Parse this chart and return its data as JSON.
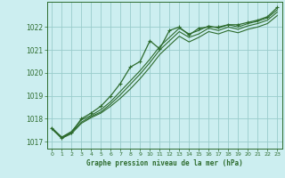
{
  "title": "Graphe pression niveau de la mer (hPa)",
  "bg_color": "#cceef0",
  "grid_color": "#99cccc",
  "line_color": "#2d6b2d",
  "xlim": [
    -0.5,
    23.5
  ],
  "ylim": [
    1016.7,
    1023.1
  ],
  "yticks": [
    1017,
    1018,
    1019,
    1020,
    1021,
    1022
  ],
  "xticks": [
    0,
    1,
    2,
    3,
    4,
    5,
    6,
    7,
    8,
    9,
    10,
    11,
    12,
    13,
    14,
    15,
    16,
    17,
    18,
    19,
    20,
    21,
    22,
    23
  ],
  "series": [
    {
      "x": [
        0,
        1,
        2,
        3,
        4,
        5,
        6,
        7,
        8,
        9,
        10,
        11,
        12,
        13,
        14,
        15,
        16,
        17,
        18,
        19,
        20,
        21,
        22,
        23
      ],
      "y": [
        1017.55,
        1017.15,
        1017.35,
        1017.8,
        1018.05,
        1018.25,
        1018.55,
        1018.9,
        1019.3,
        1019.75,
        1020.25,
        1020.8,
        1021.2,
        1021.6,
        1021.35,
        1021.55,
        1021.8,
        1021.7,
        1021.85,
        1021.75,
        1021.9,
        1022.0,
        1022.15,
        1022.5
      ],
      "has_markers": false,
      "lw": 0.8
    },
    {
      "x": [
        0,
        1,
        2,
        3,
        4,
        5,
        6,
        7,
        8,
        9,
        10,
        11,
        12,
        13,
        14,
        15,
        16,
        17,
        18,
        19,
        20,
        21,
        22,
        23
      ],
      "y": [
        1017.6,
        1017.2,
        1017.4,
        1017.85,
        1018.1,
        1018.3,
        1018.65,
        1019.05,
        1019.5,
        1019.95,
        1020.45,
        1021.0,
        1021.4,
        1021.8,
        1021.55,
        1021.7,
        1021.95,
        1021.85,
        1022.0,
        1021.9,
        1022.05,
        1022.15,
        1022.3,
        1022.65
      ],
      "has_markers": false,
      "lw": 0.8
    },
    {
      "x": [
        0,
        1,
        2,
        3,
        4,
        5,
        6,
        7,
        8,
        9,
        10,
        11,
        12,
        13,
        14,
        15,
        16,
        17,
        18,
        19,
        20,
        21,
        22,
        23
      ],
      "y": [
        1017.6,
        1017.2,
        1017.45,
        1017.95,
        1018.15,
        1018.4,
        1018.75,
        1019.2,
        1019.65,
        1020.1,
        1020.6,
        1021.15,
        1021.55,
        1021.95,
        1021.7,
        1021.85,
        1022.05,
        1021.95,
        1022.1,
        1022.0,
        1022.15,
        1022.25,
        1022.4,
        1022.75
      ],
      "has_markers": false,
      "lw": 0.8
    },
    {
      "x": [
        0,
        1,
        2,
        3,
        4,
        5,
        6,
        7,
        8,
        9,
        10,
        11,
        12,
        13,
        14,
        15,
        16,
        17,
        18,
        19,
        20,
        21,
        22,
        23
      ],
      "y": [
        1017.6,
        1017.15,
        1017.4,
        1018.0,
        1018.25,
        1018.55,
        1019.0,
        1019.55,
        1020.25,
        1020.5,
        1021.4,
        1021.05,
        1021.85,
        1022.0,
        1021.65,
        1021.95,
        1022.0,
        1022.0,
        1022.1,
        1022.1,
        1022.2,
        1022.3,
        1022.45,
        1022.85
      ],
      "has_markers": true,
      "lw": 0.9
    }
  ]
}
